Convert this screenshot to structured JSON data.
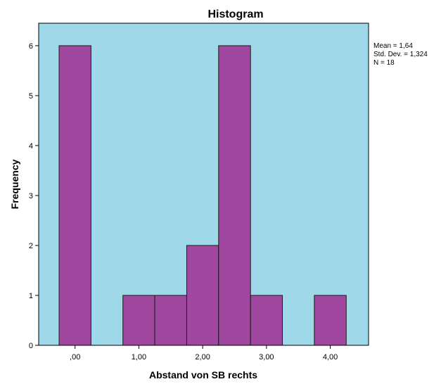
{
  "chart_data": {
    "type": "bar",
    "title": "Histogram",
    "xlabel": "Abstand von SB rechts",
    "ylabel": "Frequency",
    "bins": [
      {
        "start": -0.25,
        "end": 0.25,
        "count": 6
      },
      {
        "start": 0.25,
        "end": 0.75,
        "count": 0
      },
      {
        "start": 0.75,
        "end": 1.25,
        "count": 1
      },
      {
        "start": 1.25,
        "end": 1.75,
        "count": 1
      },
      {
        "start": 1.75,
        "end": 2.25,
        "count": 2
      },
      {
        "start": 2.25,
        "end": 2.75,
        "count": 6
      },
      {
        "start": 2.75,
        "end": 3.25,
        "count": 1
      },
      {
        "start": 3.25,
        "end": 3.75,
        "count": 0
      },
      {
        "start": 3.75,
        "end": 4.25,
        "count": 1
      }
    ],
    "xticks": [
      0,
      1,
      2,
      3,
      4
    ],
    "xtick_labels": [
      ",00",
      "1,00",
      "2,00",
      "3,00",
      "4,00"
    ],
    "yticks": [
      0,
      1,
      2,
      3,
      4,
      5,
      6
    ],
    "ytick_labels": [
      "0",
      "1",
      "2",
      "3",
      "4",
      "5",
      "6"
    ],
    "xlim": [
      -0.57,
      4.6
    ],
    "ylim": [
      0,
      6.45
    ],
    "grid": false,
    "legend": "none",
    "stats": [
      "Mean = 1,64",
      "Std. Dev. = 1,324",
      "N = 18"
    ],
    "colors": {
      "plot_background": "#9fd9e9",
      "bar_fill": "#a0479f",
      "bar_stroke": "#1a1a1a"
    }
  }
}
